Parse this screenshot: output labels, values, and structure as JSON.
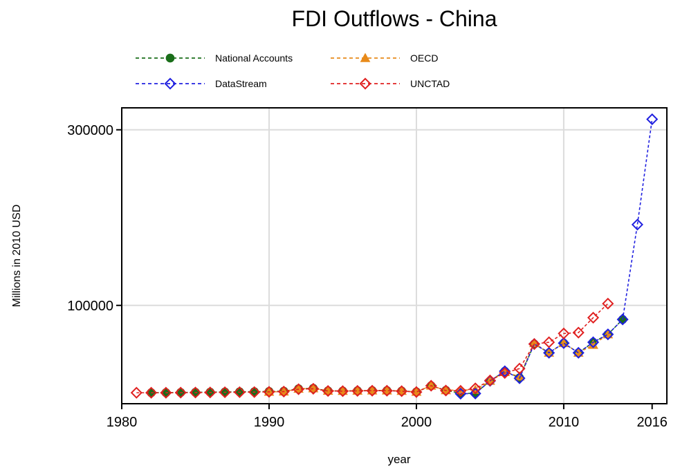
{
  "chart_data": {
    "type": "line",
    "title": "FDI Outflows - China",
    "xlabel": "year",
    "ylabel": "Millions in 2010 USD",
    "xlim": [
      1980,
      2017
    ],
    "ylim": [
      -12000,
      325000
    ],
    "xticks": [
      1980,
      1990,
      2000,
      2010,
      2016
    ],
    "yticks": [
      100000,
      300000
    ],
    "grid": true,
    "legend_position": "top",
    "series": [
      {
        "name": "National Accounts",
        "color": "#1a6e1a",
        "marker": "filled-circle",
        "x": [
          1982,
          1983,
          1984,
          1985,
          1986,
          1987,
          1988,
          1989,
          1990,
          1991,
          1992,
          1993,
          1994,
          1995,
          1996,
          1997,
          1998,
          1999,
          2000,
          2001,
          2002,
          2003,
          2004,
          2005,
          2006,
          2007,
          2008,
          2009,
          2010,
          2011,
          2012,
          2013,
          2014
        ],
        "y": [
          500,
          600,
          800,
          1000,
          1200,
          1400,
          1600,
          1700,
          2000,
          2300,
          5000,
          5500,
          2700,
          2500,
          2800,
          3000,
          3000,
          2500,
          1500,
          8500,
          3300,
          -300,
          -100,
          14000,
          25000,
          17500,
          56000,
          46000,
          57000,
          46000,
          58000,
          67000,
          84000
        ]
      },
      {
        "name": "OECD",
        "color": "#e88a1a",
        "marker": "filled-triangle",
        "x": [
          1990,
          1991,
          1992,
          1993,
          1994,
          1995,
          1996,
          1997,
          1998,
          1999,
          2000,
          2001,
          2002,
          2003,
          2004,
          2005,
          2006,
          2007,
          2008,
          2009,
          2010,
          2011,
          2012,
          2013
        ],
        "y": [
          1500,
          1800,
          5000,
          5500,
          2700,
          2500,
          2800,
          3000,
          3000,
          2500,
          1500,
          8500,
          3300,
          3500,
          3800,
          14000,
          24000,
          19000,
          57000,
          46000,
          57000,
          46000,
          55000,
          67000
        ]
      },
      {
        "name": "DataStream",
        "color": "#2020e0",
        "marker": "hollow-diamond",
        "x": [
          2003,
          2004,
          2005,
          2006,
          2007,
          2008,
          2009,
          2010,
          2011,
          2012,
          2013,
          2014,
          2015,
          2016
        ],
        "y": [
          -600,
          -400,
          14000,
          25000,
          17000,
          56000,
          46000,
          57000,
          46000,
          58000,
          67000,
          84000,
          192000,
          312000
        ]
      },
      {
        "name": "UNCTAD",
        "color": "#e02020",
        "marker": "hollow-diamond",
        "x": [
          1981,
          1982,
          1983,
          1984,
          1985,
          1986,
          1987,
          1988,
          1989,
          1990,
          1991,
          1992,
          1993,
          1994,
          1995,
          1996,
          1997,
          1998,
          1999,
          2000,
          2001,
          2002,
          2003,
          2004,
          2005,
          2006,
          2007,
          2008,
          2009,
          2010,
          2011,
          2012,
          2013
        ],
        "y": [
          500,
          500,
          500,
          600,
          700,
          800,
          1000,
          1100,
          1200,
          1500,
          1800,
          4500,
          5000,
          2500,
          2300,
          2600,
          2800,
          2800,
          2300,
          1300,
          8500,
          3000,
          2700,
          5500,
          14500,
          23000,
          28000,
          56000,
          58000,
          68000,
          69000,
          86000,
          102000
        ]
      }
    ]
  }
}
